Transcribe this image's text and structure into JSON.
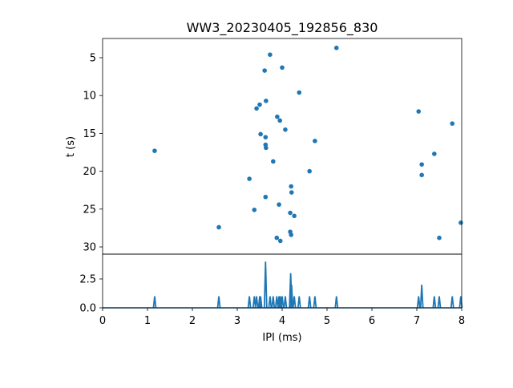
{
  "chart_data": [
    {
      "type": "scatter",
      "title": "WW3_20230405_192856_830",
      "xlabel": "",
      "ylabel": "t (s)",
      "xlim": [
        0,
        8
      ],
      "ylim": [
        30.95,
        2.46
      ],
      "y_inverted": true,
      "yticks": [
        5,
        10,
        15,
        20,
        25,
        30
      ],
      "color": "#1f77b4",
      "points": [
        [
          5.21,
          3.7
        ],
        [
          3.73,
          4.6
        ],
        [
          4.0,
          6.3
        ],
        [
          3.61,
          6.7
        ],
        [
          4.38,
          9.6
        ],
        [
          3.64,
          10.7
        ],
        [
          3.5,
          11.2
        ],
        [
          3.43,
          11.7
        ],
        [
          7.04,
          12.1
        ],
        [
          3.89,
          12.8
        ],
        [
          3.95,
          13.3
        ],
        [
          7.79,
          13.7
        ],
        [
          4.07,
          14.5
        ],
        [
          3.52,
          15.1
        ],
        [
          3.63,
          15.5
        ],
        [
          4.73,
          16.0
        ],
        [
          3.63,
          16.5
        ],
        [
          3.64,
          16.9
        ],
        [
          1.16,
          17.3
        ],
        [
          7.39,
          17.7
        ],
        [
          3.8,
          18.7
        ],
        [
          7.11,
          19.1
        ],
        [
          4.61,
          20.0
        ],
        [
          7.11,
          20.5
        ],
        [
          3.27,
          21.0
        ],
        [
          4.2,
          22.0
        ],
        [
          4.21,
          22.8
        ],
        [
          3.63,
          23.4
        ],
        [
          3.93,
          24.4
        ],
        [
          3.38,
          25.1
        ],
        [
          4.18,
          25.5
        ],
        [
          4.27,
          25.9
        ],
        [
          7.98,
          26.8
        ],
        [
          2.59,
          27.4
        ],
        [
          4.18,
          28.0
        ],
        [
          4.2,
          28.4
        ],
        [
          3.88,
          28.8
        ],
        [
          7.5,
          28.8
        ],
        [
          3.96,
          29.2
        ]
      ]
    },
    {
      "type": "line",
      "xlabel": "IPI (ms)",
      "ylabel": "",
      "xlim": [
        0,
        8
      ],
      "ylim": [
        0,
        4.65
      ],
      "xticks": [
        0,
        1,
        2,
        3,
        4,
        5,
        6,
        7,
        8
      ],
      "yticks": [
        "0.0",
        "2.5"
      ],
      "ytick_values": [
        0,
        2.5
      ],
      "color": "#1f77b4",
      "spikes": [
        [
          1.16,
          1
        ],
        [
          2.59,
          1
        ],
        [
          3.27,
          1
        ],
        [
          3.38,
          1
        ],
        [
          3.43,
          1
        ],
        [
          3.5,
          1
        ],
        [
          3.52,
          1
        ],
        [
          3.63,
          4
        ],
        [
          3.73,
          1
        ],
        [
          3.8,
          1
        ],
        [
          3.88,
          1
        ],
        [
          3.93,
          1
        ],
        [
          3.96,
          1
        ],
        [
          4.0,
          1
        ],
        [
          4.07,
          1
        ],
        [
          4.19,
          3
        ],
        [
          4.21,
          2
        ],
        [
          4.27,
          1
        ],
        [
          4.38,
          1
        ],
        [
          4.61,
          1
        ],
        [
          4.73,
          1
        ],
        [
          5.21,
          1
        ],
        [
          7.04,
          1
        ],
        [
          7.11,
          2
        ],
        [
          7.39,
          1
        ],
        [
          7.5,
          1
        ],
        [
          7.79,
          1
        ],
        [
          7.98,
          1
        ]
      ]
    }
  ]
}
